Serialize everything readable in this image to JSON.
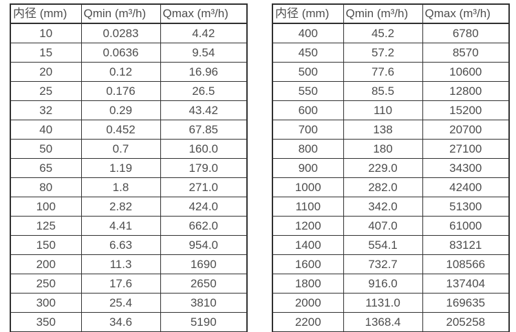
{
  "page": {
    "background_color": "#ffffff",
    "text_color": "#4d4d4d",
    "border_color": "#2f2f2f",
    "description": "flow-rate-specification-tables"
  },
  "tables": [
    {
      "name": "flow-rate-table-small-diameters",
      "headers": [
        "内径 (mm)",
        "Qmin (m³/h)",
        "Qmax (m³/h)"
      ],
      "rows": [
        [
          "10",
          "0.0283",
          "4.42"
        ],
        [
          "15",
          "0.0636",
          "9.54"
        ],
        [
          "20",
          "0.12",
          "16.96"
        ],
        [
          "25",
          "0.176",
          "26.5"
        ],
        [
          "32",
          "0.29",
          "43.42"
        ],
        [
          "40",
          "0.452",
          "67.85"
        ],
        [
          "50",
          "0.7",
          "160.0"
        ],
        [
          "65",
          "1.19",
          "179.0"
        ],
        [
          "80",
          "1.8",
          "271.0"
        ],
        [
          "100",
          "2.82",
          "424.0"
        ],
        [
          "125",
          "4.41",
          "662.0"
        ],
        [
          "150",
          "6.63",
          "954.0"
        ],
        [
          "200",
          "11.3",
          "1690"
        ],
        [
          "250",
          "17.6",
          "2650"
        ],
        [
          "300",
          "25.4",
          "3810"
        ],
        [
          "350",
          "34.6",
          "5190"
        ]
      ]
    },
    {
      "name": "flow-rate-table-large-diameters",
      "headers": [
        "内径 (mm)",
        "Qmin (m³/h)",
        "Qmax (m³/h)"
      ],
      "rows": [
        [
          "400",
          "45.2",
          "6780"
        ],
        [
          "450",
          "57.2",
          "8570"
        ],
        [
          "500",
          "77.6",
          "10600"
        ],
        [
          "550",
          "85.5",
          "12800"
        ],
        [
          "600",
          "110",
          "15200"
        ],
        [
          "700",
          "138",
          "20700"
        ],
        [
          "800",
          "180",
          "27100"
        ],
        [
          "900",
          "229.0",
          "34300"
        ],
        [
          "1000",
          "282.0",
          "42400"
        ],
        [
          "1100",
          "342.0",
          "51300"
        ],
        [
          "1200",
          "407.0",
          "61000"
        ],
        [
          "1400",
          "554.1",
          "83121"
        ],
        [
          "1600",
          "732.7",
          "108566"
        ],
        [
          "1800",
          "916.0",
          "137404"
        ],
        [
          "2000",
          "1131.0",
          "169635"
        ],
        [
          "2200",
          "1368.4",
          "205258"
        ]
      ]
    }
  ]
}
